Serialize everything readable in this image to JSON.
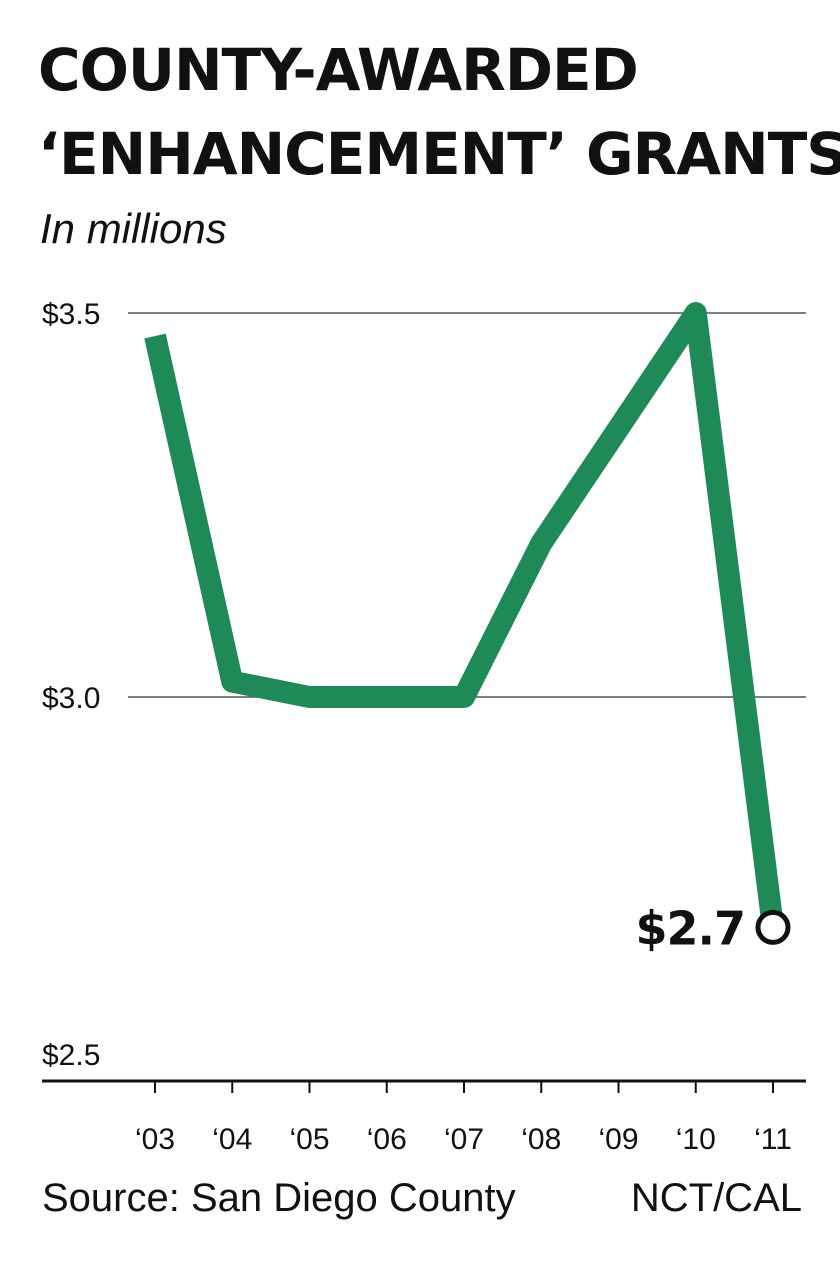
{
  "header": {
    "title_lines": [
      "COUNTY-AWARDED",
      "‘ENHANCEMENT’ GRANTS"
    ],
    "subtitle": "In millions"
  },
  "footer": {
    "source": "Source: San Diego County",
    "credit": "NCT/CAL"
  },
  "colors": {
    "line": "#1e8a57",
    "gridline": "#555555",
    "baseline": "#111111",
    "text": "#111111"
  },
  "chart_data": {
    "type": "line",
    "title": "COUNTY-AWARDED ‘ENHANCEMENT’ GRANTS",
    "subtitle": "In millions",
    "categories": [
      "‘03",
      "‘04",
      "‘05",
      "‘06",
      "‘07",
      "‘08",
      "‘09",
      "‘10",
      "‘11"
    ],
    "series": [
      {
        "values": [
          3.47,
          3.02,
          3.0,
          3.0,
          3.0,
          3.2,
          3.35,
          3.5,
          2.7
        ]
      }
    ],
    "ylim": [
      2.5,
      3.5
    ],
    "yticks": [
      {
        "value": 3.5,
        "label": "$3.5"
      },
      {
        "value": 3.0,
        "label": "$3.0"
      },
      {
        "value": 2.5,
        "label": "$2.5"
      }
    ],
    "grid": true,
    "legend": "none",
    "annotations": [
      {
        "category_index": 8,
        "value": 2.7,
        "label": "$2.7",
        "marker": "open-circle"
      }
    ]
  }
}
